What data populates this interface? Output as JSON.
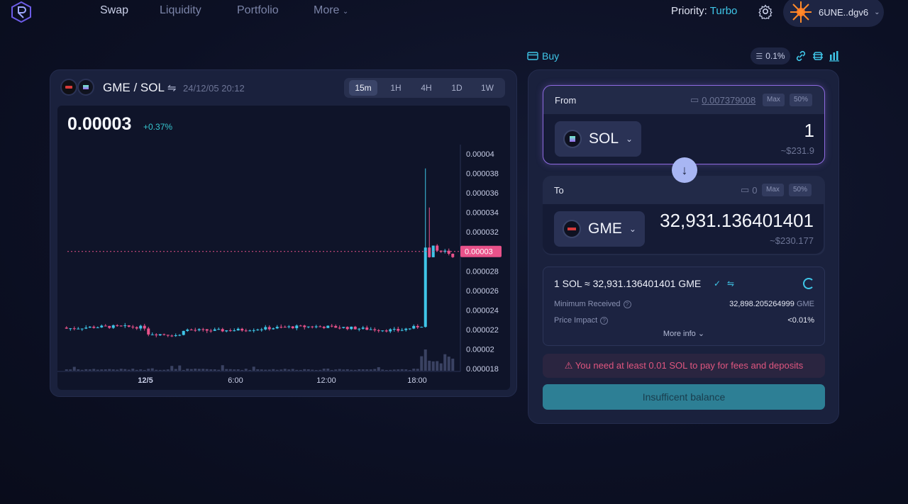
{
  "nav": {
    "links": [
      "Swap",
      "Liquidity",
      "Portfolio",
      "More"
    ],
    "priority_label": "Priority:",
    "priority_value": "Turbo",
    "wallet_address": "6UNE..dgv6"
  },
  "chart": {
    "pair": "GME / SOL",
    "datetime": "24/12/05 20:12",
    "timeframes": [
      "15m",
      "1H",
      "4H",
      "1D",
      "1W"
    ],
    "active_timeframe": "15m",
    "price": "0.00003",
    "change": "+0.37%"
  },
  "chart_data": {
    "type": "candlestick",
    "y_ticks": [
      "0.00004",
      "0.000038",
      "0.000036",
      "0.000034",
      "0.000032",
      "0.00003",
      "0.000028",
      "0.000026",
      "0.000024",
      "0.000022",
      "0.00002",
      "0.000018"
    ],
    "x_ticks": [
      "12/5",
      "6:00",
      "12:00",
      "18:00"
    ],
    "current_price_label": "0.00003",
    "ylim": [
      1.8e-05,
      4e-05
    ],
    "up_color": "#3fc6e8",
    "down_color": "#e8528a"
  },
  "swap": {
    "buy_label": "Buy",
    "slippage": "0.1%",
    "from": {
      "label": "From",
      "balance": "0.007379008",
      "max": "Max",
      "half": "50%",
      "token": "SOL",
      "amount": "1",
      "usd": "~$231.9"
    },
    "to": {
      "label": "To",
      "balance": "0",
      "max": "Max",
      "half": "50%",
      "token": "GME",
      "amount": "32,931.136401401",
      "usd": "~$230.177"
    },
    "rate": "1 SOL ≈ 32,931.136401401 GME",
    "min_received_label": "Minimum Received",
    "min_received_value": "32,898.205264999",
    "min_received_unit": "GME",
    "price_impact_label": "Price Impact",
    "price_impact_value": "<0.01%",
    "more_info": "More info",
    "warning": "You need at least 0.01 SOL to pay for fees and deposits",
    "button": "Insufficent balance"
  },
  "colors": {
    "accent": "#3fc6e8",
    "warning": "#e0567f",
    "from_border": "#8e6ae0"
  }
}
